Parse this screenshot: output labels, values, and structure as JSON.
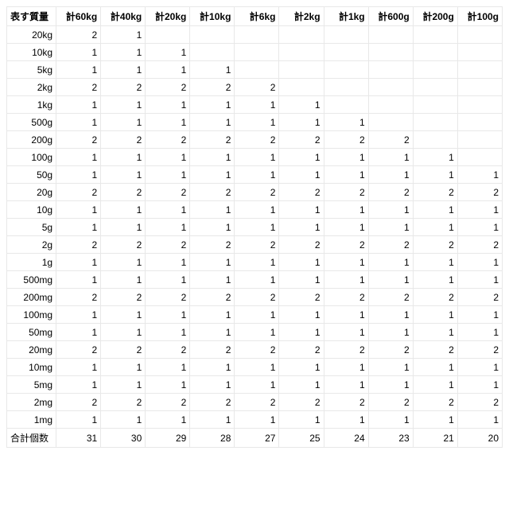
{
  "table": {
    "header_label": "表す質量",
    "columns": [
      "計60kg",
      "計40kg",
      "計20kg",
      "計10kg",
      "計6kg",
      "計2kg",
      "計1kg",
      "計600g",
      "計200g",
      "計100g"
    ],
    "rows": [
      {
        "label": "20kg",
        "cells": [
          "2",
          "1",
          "",
          "",
          "",
          "",
          "",
          "",
          "",
          ""
        ]
      },
      {
        "label": "10kg",
        "cells": [
          "1",
          "1",
          "1",
          "",
          "",
          "",
          "",
          "",
          "",
          ""
        ]
      },
      {
        "label": "5kg",
        "cells": [
          "1",
          "1",
          "1",
          "1",
          "",
          "",
          "",
          "",
          "",
          ""
        ]
      },
      {
        "label": "2kg",
        "cells": [
          "2",
          "2",
          "2",
          "2",
          "2",
          "",
          "",
          "",
          "",
          ""
        ]
      },
      {
        "label": "1kg",
        "cells": [
          "1",
          "1",
          "1",
          "1",
          "1",
          "1",
          "",
          "",
          "",
          ""
        ]
      },
      {
        "label": "500g",
        "cells": [
          "1",
          "1",
          "1",
          "1",
          "1",
          "1",
          "1",
          "",
          "",
          ""
        ]
      },
      {
        "label": "200g",
        "cells": [
          "2",
          "2",
          "2",
          "2",
          "2",
          "2",
          "2",
          "2",
          "",
          ""
        ]
      },
      {
        "label": "100g",
        "cells": [
          "1",
          "1",
          "1",
          "1",
          "1",
          "1",
          "1",
          "1",
          "1",
          ""
        ]
      },
      {
        "label": "50g",
        "cells": [
          "1",
          "1",
          "1",
          "1",
          "1",
          "1",
          "1",
          "1",
          "1",
          "1"
        ]
      },
      {
        "label": "20g",
        "cells": [
          "2",
          "2",
          "2",
          "2",
          "2",
          "2",
          "2",
          "2",
          "2",
          "2"
        ]
      },
      {
        "label": "10g",
        "cells": [
          "1",
          "1",
          "1",
          "1",
          "1",
          "1",
          "1",
          "1",
          "1",
          "1"
        ]
      },
      {
        "label": "5g",
        "cells": [
          "1",
          "1",
          "1",
          "1",
          "1",
          "1",
          "1",
          "1",
          "1",
          "1"
        ]
      },
      {
        "label": "2g",
        "cells": [
          "2",
          "2",
          "2",
          "2",
          "2",
          "2",
          "2",
          "2",
          "2",
          "2"
        ]
      },
      {
        "label": "1g",
        "cells": [
          "1",
          "1",
          "1",
          "1",
          "1",
          "1",
          "1",
          "1",
          "1",
          "1"
        ]
      },
      {
        "label": "500mg",
        "cells": [
          "1",
          "1",
          "1",
          "1",
          "1",
          "1",
          "1",
          "1",
          "1",
          "1"
        ]
      },
      {
        "label": "200mg",
        "cells": [
          "2",
          "2",
          "2",
          "2",
          "2",
          "2",
          "2",
          "2",
          "2",
          "2"
        ]
      },
      {
        "label": "100mg",
        "cells": [
          "1",
          "1",
          "1",
          "1",
          "1",
          "1",
          "1",
          "1",
          "1",
          "1"
        ]
      },
      {
        "label": "50mg",
        "cells": [
          "1",
          "1",
          "1",
          "1",
          "1",
          "1",
          "1",
          "1",
          "1",
          "1"
        ]
      },
      {
        "label": "20mg",
        "cells": [
          "2",
          "2",
          "2",
          "2",
          "2",
          "2",
          "2",
          "2",
          "2",
          "2"
        ]
      },
      {
        "label": "10mg",
        "cells": [
          "1",
          "1",
          "1",
          "1",
          "1",
          "1",
          "1",
          "1",
          "1",
          "1"
        ]
      },
      {
        "label": "5mg",
        "cells": [
          "1",
          "1",
          "1",
          "1",
          "1",
          "1",
          "1",
          "1",
          "1",
          "1"
        ]
      },
      {
        "label": "2mg",
        "cells": [
          "2",
          "2",
          "2",
          "2",
          "2",
          "2",
          "2",
          "2",
          "2",
          "2"
        ]
      },
      {
        "label": "1mg",
        "cells": [
          "1",
          "1",
          "1",
          "1",
          "1",
          "1",
          "1",
          "1",
          "1",
          "1"
        ]
      },
      {
        "label": "合計個数",
        "cells": [
          "31",
          "30",
          "29",
          "28",
          "27",
          "25",
          "24",
          "23",
          "21",
          "20"
        ]
      }
    ],
    "colors": {
      "background": "#ffffff",
      "border": "#e8e8e8",
      "text": "#000000"
    },
    "fontsize": 12
  }
}
